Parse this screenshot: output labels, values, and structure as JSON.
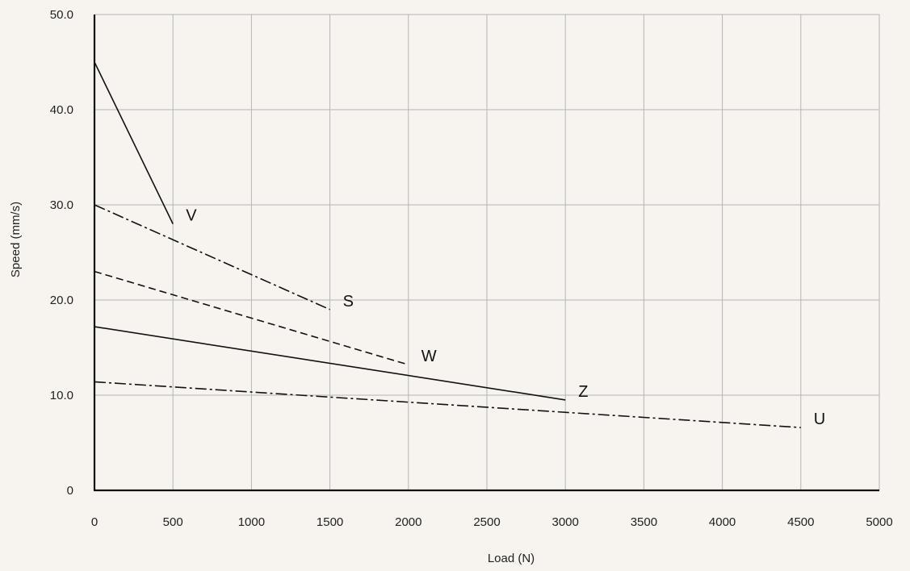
{
  "chart_data": {
    "type": "line",
    "title": "",
    "xlabel": "Load (N)",
    "ylabel": "Speed (mm/s)",
    "xlim": [
      0,
      5000
    ],
    "ylim": [
      0,
      50
    ],
    "x_ticks": [
      0,
      500,
      1000,
      1500,
      2000,
      2500,
      3000,
      3500,
      4000,
      4500,
      5000
    ],
    "x_tick_labels": [
      "0",
      "500",
      "1000",
      "1500",
      "2000",
      "2500",
      "3000",
      "3500",
      "4000",
      "4500",
      "5000"
    ],
    "y_ticks": [
      0,
      10,
      20,
      30,
      40,
      50
    ],
    "y_tick_labels": [
      "0",
      "10.0",
      "20.0",
      "30.0",
      "40.0",
      "50.0"
    ],
    "grid": true,
    "colors": {
      "background": "#f7f4ef",
      "grid": "#b5b5b5",
      "axis": "#111111",
      "line": "#111111"
    },
    "series": [
      {
        "name": "V",
        "style": "solid",
        "x": [
          0,
          500
        ],
        "y": [
          45.0,
          28.0
        ]
      },
      {
        "name": "S",
        "style": "dashdot",
        "x": [
          0,
          1500
        ],
        "y": [
          30.0,
          19.0
        ]
      },
      {
        "name": "W",
        "style": "dashed",
        "x": [
          0,
          2000
        ],
        "y": [
          23.0,
          13.2
        ]
      },
      {
        "name": "Z",
        "style": "solid",
        "x": [
          0,
          3000
        ],
        "y": [
          17.2,
          9.5
        ]
      },
      {
        "name": "U",
        "style": "dashdot",
        "x": [
          0,
          4500
        ],
        "y": [
          11.4,
          6.6
        ]
      }
    ]
  }
}
